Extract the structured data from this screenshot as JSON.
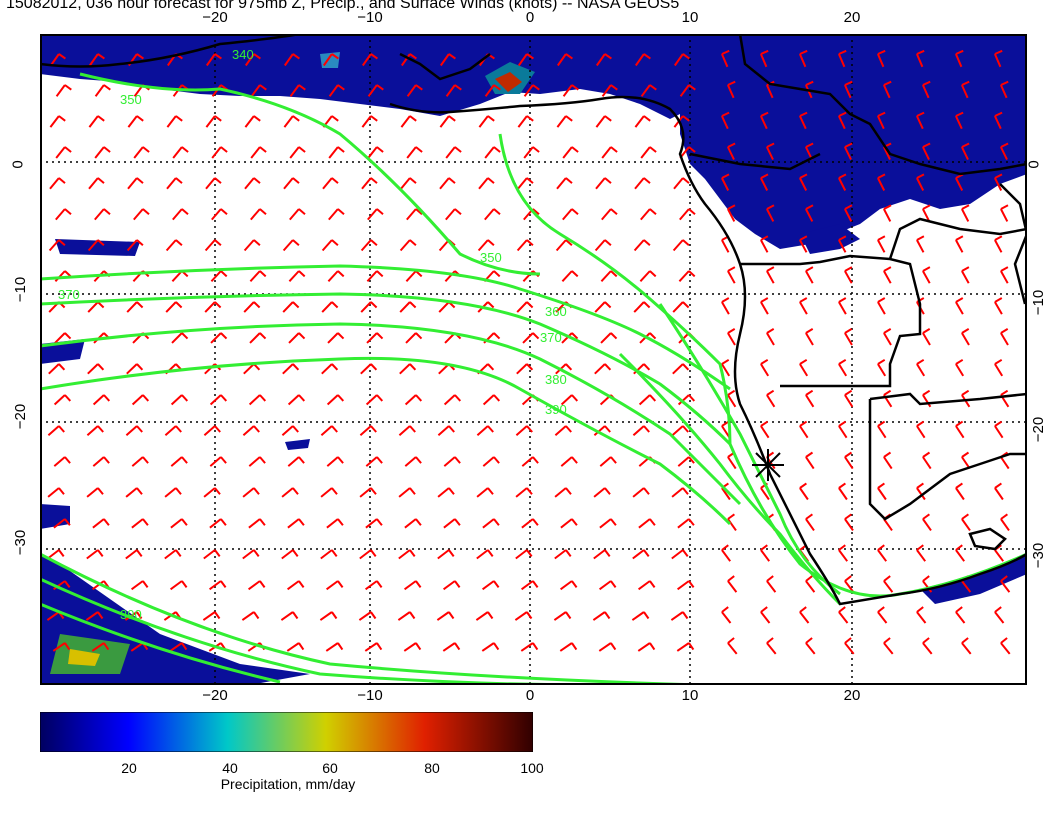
{
  "title": "15082012, 036 hour forecast for 975mb Z, Precip., and Surface Winds (knots) -- NASA GEOS5",
  "axes": {
    "x_ticks": [
      "−20",
      "−10",
      "0",
      "10",
      "20"
    ],
    "y_ticks": [
      "0",
      "−10",
      "−20",
      "−30"
    ]
  },
  "contour_labels": [
    "340",
    "350",
    "360",
    "370",
    "380",
    "390"
  ],
  "colorbar": {
    "ticks": [
      "20",
      "40",
      "60",
      "80",
      "100"
    ],
    "label": "Precipitation, mm/day"
  },
  "colors": {
    "precip_high": "#5a0000",
    "precip_mid": "#e0c000",
    "precip_low": "#00008b",
    "contour": "#33ee33",
    "wind_barb": "#ff0000",
    "coastline": "#000000"
  }
}
